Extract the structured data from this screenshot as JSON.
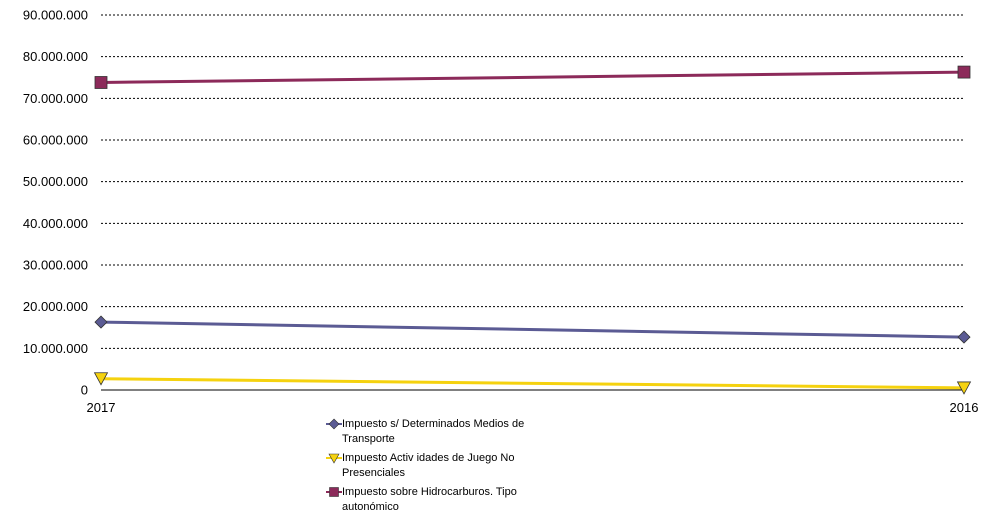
{
  "chart_data": {
    "type": "line",
    "x": [
      "2017",
      "2016"
    ],
    "ylim": [
      0,
      90000000
    ],
    "yticks": [
      0,
      10000000,
      20000000,
      30000000,
      40000000,
      50000000,
      60000000,
      70000000,
      80000000,
      90000000
    ],
    "ytick_labels": [
      "0",
      "10.000.000",
      "20.000.000",
      "30.000.000",
      "40.000.000",
      "50.000.000",
      "60.000.000",
      "70.000.000",
      "80.000.000",
      "90.000.000"
    ],
    "grid": true,
    "legend_position": "bottom",
    "series": [
      {
        "name": "Impuesto s/ Determinados Medios de Transporte",
        "values": [
          16300000,
          12700000
        ],
        "color": "#5b5b94",
        "marker": "diamond"
      },
      {
        "name": "Impuesto Activ idades de Juego No Presenciales",
        "values": [
          2700000,
          500000
        ],
        "color": "#f5d20f",
        "marker": "triangle-down"
      },
      {
        "name": "Impuesto sobre Hidrocarburos. Tipo autonómico",
        "values": [
          73800000,
          76300000
        ],
        "color": "#8c2a5a",
        "marker": "square"
      }
    ]
  }
}
